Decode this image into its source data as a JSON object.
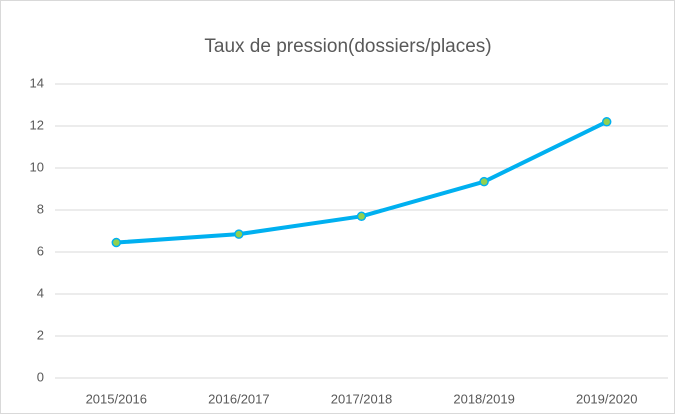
{
  "chart_data": {
    "type": "line",
    "title": "Taux de pression(dossiers/places)",
    "categories": [
      "2015/2016",
      "2016/2017",
      "2017/2018",
      "2018/2019",
      "2019/2020"
    ],
    "values": [
      6.45,
      6.85,
      7.7,
      9.35,
      12.2
    ],
    "color": "#00b0f0",
    "marker_color": "#92d050",
    "ylim": [
      0,
      14
    ],
    "yticks": [
      0,
      2,
      4,
      6,
      8,
      10,
      12,
      14
    ],
    "grid": true
  }
}
